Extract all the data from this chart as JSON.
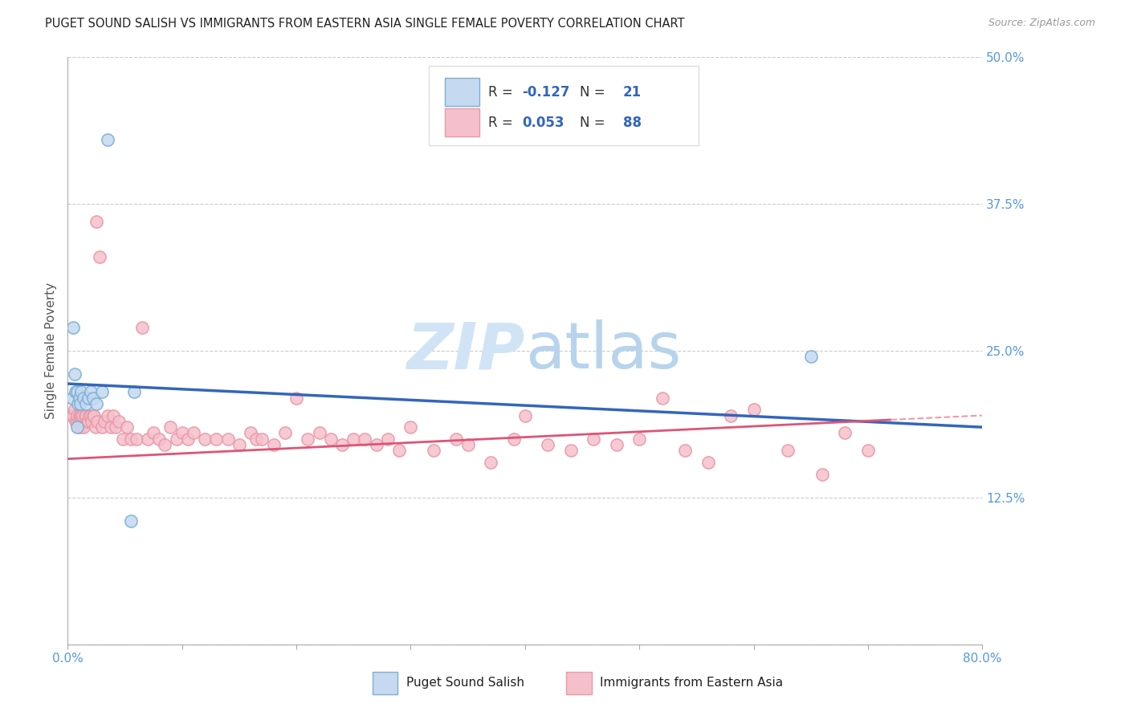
{
  "title": "PUGET SOUND SALISH VS IMMIGRANTS FROM EASTERN ASIA SINGLE FEMALE POVERTY CORRELATION CHART",
  "source": "Source: ZipAtlas.com",
  "ylabel": "Single Female Poverty",
  "xlim": [
    0.0,
    0.8
  ],
  "ylim": [
    0.0,
    0.5
  ],
  "yticks": [
    0.0,
    0.125,
    0.25,
    0.375,
    0.5
  ],
  "ytick_labels_right": [
    "",
    "12.5%",
    "25.0%",
    "37.5%",
    "50.0%"
  ],
  "blue_fill": "#c5d9f0",
  "blue_edge": "#7bafd4",
  "pink_fill": "#f5c0cc",
  "pink_edge": "#e899a8",
  "blue_line_color": "#3366BB",
  "pink_line_color": "#DD5577",
  "pink_dashed_color": "#EE99AA",
  "title_color": "#222222",
  "source_color": "#999999",
  "axis_tick_color": "#5599DD",
  "ylabel_color": "#555555",
  "grid_color": "#CCCCCC",
  "watermark_color": "#D0E4F5",
  "legend_box_color": "#DDDDDD",
  "blue_x": [
    0.004,
    0.005,
    0.006,
    0.007,
    0.008,
    0.009,
    0.01,
    0.011,
    0.012,
    0.014,
    0.016,
    0.018,
    0.02,
    0.022,
    0.025,
    0.03,
    0.035,
    0.055,
    0.058,
    0.65,
    0.008
  ],
  "blue_y": [
    0.21,
    0.27,
    0.23,
    0.215,
    0.215,
    0.205,
    0.21,
    0.205,
    0.215,
    0.21,
    0.205,
    0.21,
    0.215,
    0.21,
    0.205,
    0.215,
    0.43,
    0.105,
    0.215,
    0.245,
    0.185
  ],
  "pink_x": [
    0.004,
    0.005,
    0.006,
    0.007,
    0.008,
    0.008,
    0.009,
    0.01,
    0.01,
    0.011,
    0.012,
    0.012,
    0.013,
    0.014,
    0.015,
    0.016,
    0.017,
    0.018,
    0.019,
    0.02,
    0.021,
    0.022,
    0.023,
    0.024,
    0.025,
    0.026,
    0.028,
    0.03,
    0.032,
    0.035,
    0.038,
    0.04,
    0.042,
    0.045,
    0.048,
    0.052,
    0.055,
    0.06,
    0.065,
    0.07,
    0.075,
    0.08,
    0.085,
    0.09,
    0.095,
    0.1,
    0.105,
    0.11,
    0.12,
    0.13,
    0.14,
    0.15,
    0.16,
    0.165,
    0.17,
    0.18,
    0.19,
    0.2,
    0.21,
    0.22,
    0.23,
    0.24,
    0.25,
    0.26,
    0.27,
    0.28,
    0.29,
    0.3,
    0.32,
    0.34,
    0.35,
    0.37,
    0.39,
    0.4,
    0.42,
    0.44,
    0.46,
    0.48,
    0.5,
    0.52,
    0.54,
    0.56,
    0.58,
    0.6,
    0.63,
    0.66,
    0.68,
    0.7
  ],
  "pink_y": [
    0.195,
    0.195,
    0.2,
    0.19,
    0.19,
    0.195,
    0.185,
    0.19,
    0.195,
    0.195,
    0.185,
    0.195,
    0.195,
    0.185,
    0.195,
    0.195,
    0.19,
    0.19,
    0.195,
    0.195,
    0.19,
    0.195,
    0.195,
    0.185,
    0.36,
    0.19,
    0.33,
    0.185,
    0.19,
    0.195,
    0.185,
    0.195,
    0.185,
    0.19,
    0.175,
    0.185,
    0.175,
    0.175,
    0.27,
    0.175,
    0.18,
    0.175,
    0.17,
    0.185,
    0.175,
    0.18,
    0.175,
    0.18,
    0.175,
    0.175,
    0.175,
    0.17,
    0.18,
    0.175,
    0.175,
    0.17,
    0.18,
    0.21,
    0.175,
    0.18,
    0.175,
    0.17,
    0.175,
    0.175,
    0.17,
    0.175,
    0.165,
    0.185,
    0.165,
    0.175,
    0.17,
    0.155,
    0.175,
    0.195,
    0.17,
    0.165,
    0.175,
    0.17,
    0.175,
    0.21,
    0.165,
    0.155,
    0.195,
    0.2,
    0.165,
    0.145,
    0.18,
    0.165
  ]
}
